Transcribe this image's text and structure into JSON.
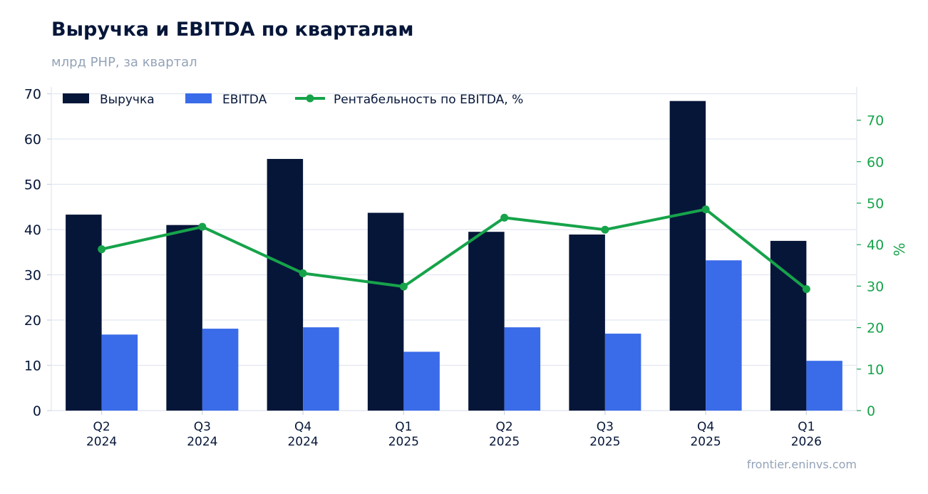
{
  "header": {
    "title": "Выручка и EBITDA по кварталам",
    "subtitle": "млрд РНР, за квартал"
  },
  "footer": {
    "source": "frontier.eninvs.com"
  },
  "colors": {
    "revenue": "#061639",
    "ebitda": "#3a6be8",
    "margin": "#16a34a",
    "grid": "#e2e8f0",
    "axis_text": "#061639"
  },
  "chart_data": {
    "type": "bar",
    "categories": [
      [
        "Q2",
        "2024"
      ],
      [
        "Q3",
        "2024"
      ],
      [
        "Q4",
        "2024"
      ],
      [
        "Q1",
        "2025"
      ],
      [
        "Q2",
        "2025"
      ],
      [
        "Q3",
        "2025"
      ],
      [
        "Q4",
        "2025"
      ],
      [
        "Q1",
        "2026"
      ]
    ],
    "series": [
      {
        "name": "Выручка",
        "kind": "bar",
        "axis": "left",
        "values": [
          43.3,
          41.0,
          55.6,
          43.7,
          39.5,
          38.9,
          68.4,
          37.5
        ]
      },
      {
        "name": "EBITDA",
        "kind": "bar",
        "axis": "left",
        "values": [
          16.8,
          18.1,
          18.4,
          13.0,
          18.4,
          17.0,
          33.2,
          11.0
        ]
      },
      {
        "name": "Рентабельность по EBITDA, %",
        "kind": "line",
        "axis": "right",
        "values": [
          38.9,
          44.3,
          33.1,
          29.9,
          46.5,
          43.6,
          48.5,
          29.3
        ]
      }
    ],
    "ylim": [
      0,
      71.5
    ],
    "y2lim": [
      0,
      78
    ],
    "yticks": [
      0,
      10,
      20,
      30,
      40,
      50,
      60,
      70
    ],
    "y2ticks": [
      0,
      10,
      20,
      30,
      40,
      50,
      60,
      70
    ],
    "y2label": "%",
    "grid": true,
    "legend": "top-left"
  }
}
